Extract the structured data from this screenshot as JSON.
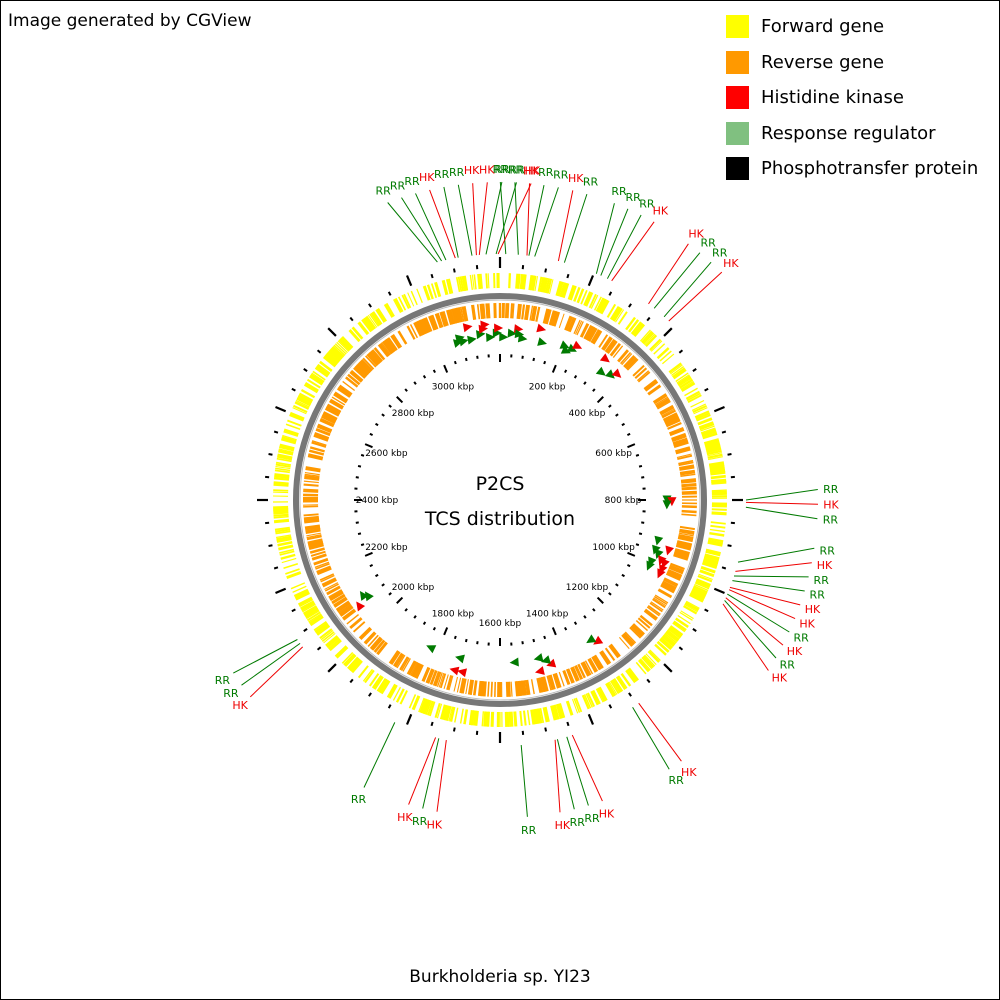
{
  "credit": "Image generated by CGView",
  "caption": "Burkholderia sp. YI23",
  "center_title": "P2CS",
  "center_subtitle": "TCS distribution",
  "legend": [
    {
      "label": "Forward gene",
      "color": "#ffff00"
    },
    {
      "label": "Reverse gene",
      "color": "#ff9900"
    },
    {
      "label": "Histidine kinase",
      "color": "#ff0000"
    },
    {
      "label": "Response regulator",
      "color": "#80c080"
    },
    {
      "label": "Phosphotransfer protein",
      "color": "#000000"
    }
  ],
  "colors": {
    "hk": "#ee0000",
    "rr": "#007a00",
    "forward": "#ffff00",
    "reverse": "#ff9900",
    "backbone": "#777777"
  },
  "genome": {
    "length_kbp": 3200,
    "tick_labels": [
      "200 kbp",
      "400 kbp",
      "600 kbp",
      "800 kbp",
      "1000 kbp",
      "1200 kbp",
      "1400 kbp",
      "1600 kbp",
      "1800 kbp",
      "2000 kbp",
      "2200 kbp",
      "2400 kbp",
      "2600 kbp",
      "2800 kbp",
      "3000 kbp"
    ]
  },
  "features": [
    {
      "label": "RR",
      "type": "rr",
      "pos_kbp": 3069
    },
    {
      "label": "RR",
      "type": "rr",
      "pos_kbp": 3078
    },
    {
      "label": "RR",
      "type": "rr",
      "pos_kbp": 3087
    },
    {
      "label": "HK",
      "type": "hk",
      "pos_kbp": 3107
    },
    {
      "label": "RR",
      "type": "rr",
      "pos_kbp": 3113
    },
    {
      "label": "RR",
      "type": "rr",
      "pos_kbp": 3142
    },
    {
      "label": "HK",
      "type": "hk",
      "pos_kbp": 3151
    },
    {
      "label": "HK",
      "type": "hk",
      "pos_kbp": 3157
    },
    {
      "label": "RR",
      "type": "rr",
      "pos_kbp": 3171
    },
    {
      "label": "RR",
      "type": "rr",
      "pos_kbp": 3192
    },
    {
      "label": "HK",
      "type": "hk",
      "pos_kbp": 3196
    },
    {
      "label": "RR",
      "type": "rr",
      "pos_kbp": 12
    },
    {
      "label": "RR",
      "type": "rr",
      "pos_kbp": 38
    },
    {
      "label": "HK",
      "type": "hk",
      "pos_kbp": 56
    },
    {
      "label": "RR",
      "type": "rr",
      "pos_kbp": 60
    },
    {
      "label": "RR",
      "type": "rr",
      "pos_kbp": 72
    },
    {
      "label": "HK",
      "type": "hk",
      "pos_kbp": 122
    },
    {
      "label": "RR",
      "type": "rr",
      "pos_kbp": 135
    },
    {
      "label": "RR",
      "type": "rr",
      "pos_kbp": 205
    },
    {
      "label": "RR",
      "type": "rr",
      "pos_kbp": 215
    },
    {
      "label": "RR",
      "type": "rr",
      "pos_kbp": 230
    },
    {
      "label": "HK",
      "type": "hk",
      "pos_kbp": 240
    },
    {
      "label": "HK",
      "type": "hk",
      "pos_kbp": 330
    },
    {
      "label": "RR",
      "type": "rr",
      "pos_kbp": 345
    },
    {
      "label": "RR",
      "type": "rr",
      "pos_kbp": 372
    },
    {
      "label": "HK",
      "type": "hk",
      "pos_kbp": 385
    },
    {
      "label": "RR",
      "type": "rr",
      "pos_kbp": 800
    },
    {
      "label": "HK",
      "type": "hk",
      "pos_kbp": 805
    },
    {
      "label": "RR",
      "type": "rr",
      "pos_kbp": 815
    },
    {
      "label": "RR",
      "type": "rr",
      "pos_kbp": 930
    },
    {
      "label": "HK",
      "type": "hk",
      "pos_kbp": 950
    },
    {
      "label": "RR",
      "type": "rr",
      "pos_kbp": 960
    },
    {
      "label": "RR",
      "type": "rr",
      "pos_kbp": 970
    },
    {
      "label": "HK",
      "type": "hk",
      "pos_kbp": 985
    },
    {
      "label": "HK",
      "type": "hk",
      "pos_kbp": 990
    },
    {
      "label": "RR",
      "type": "rr",
      "pos_kbp": 1000
    },
    {
      "label": "HK",
      "type": "hk",
      "pos_kbp": 1008
    },
    {
      "label": "RR",
      "type": "rr",
      "pos_kbp": 1014
    },
    {
      "label": "HK",
      "type": "hk",
      "pos_kbp": 1022
    },
    {
      "label": "HK",
      "type": "hk",
      "pos_kbp": 1295
    },
    {
      "label": "RR",
      "type": "rr",
      "pos_kbp": 1310
    },
    {
      "label": "HK",
      "type": "hk",
      "pos_kbp": 1448
    },
    {
      "label": "RR",
      "type": "rr",
      "pos_kbp": 1460
    },
    {
      "label": "RR",
      "type": "rr",
      "pos_kbp": 1480
    },
    {
      "label": "HK",
      "type": "hk",
      "pos_kbp": 1485
    },
    {
      "label": "RR",
      "type": "rr",
      "pos_kbp": 1556
    },
    {
      "label": "HK",
      "type": "hk",
      "pos_kbp": 1712
    },
    {
      "label": "RR",
      "type": "rr",
      "pos_kbp": 1728
    },
    {
      "label": "HK",
      "type": "hk",
      "pos_kbp": 1735
    },
    {
      "label": "RR",
      "type": "rr",
      "pos_kbp": 1825
    },
    {
      "label": "HK",
      "type": "hk",
      "pos_kbp": 2074
    },
    {
      "label": "RR",
      "type": "rr",
      "pos_kbp": 2083
    },
    {
      "label": "RR",
      "type": "rr",
      "pos_kbp": 2093
    }
  ]
}
